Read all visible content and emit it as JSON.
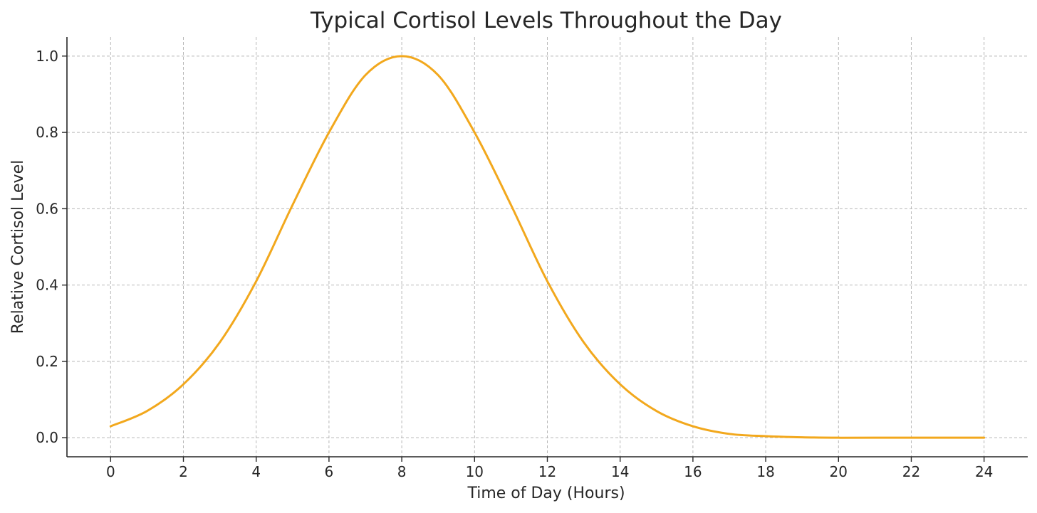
{
  "chart_data": {
    "type": "line",
    "title": "Typical Cortisol Levels Throughout the Day",
    "xlabel": "Time of Day (Hours)",
    "ylabel": "Relative Cortisol Level",
    "xlim": [
      -1.2,
      25.2
    ],
    "ylim": [
      -0.05,
      1.05
    ],
    "xticks": [
      0,
      2,
      4,
      6,
      8,
      10,
      12,
      14,
      16,
      18,
      20,
      22,
      24
    ],
    "xtick_labels": [
      "0",
      "2",
      "4",
      "6",
      "8",
      "10",
      "12",
      "14",
      "16",
      "18",
      "20",
      "22",
      "24"
    ],
    "yticks": [
      0.0,
      0.2,
      0.4,
      0.6,
      0.8,
      1.0
    ],
    "ytick_labels": [
      "0.0",
      "0.2",
      "0.4",
      "0.6",
      "0.8",
      "1.0"
    ],
    "grid": true,
    "legend": "none",
    "series": [
      {
        "color": "#F2A81D",
        "x": [
          0,
          1,
          2,
          3,
          4,
          5,
          6,
          7,
          8,
          9,
          10,
          11,
          12,
          13,
          14,
          15,
          16,
          17,
          18,
          19,
          20,
          21,
          22,
          23,
          24
        ],
        "y": [
          0.03,
          0.07,
          0.14,
          0.25,
          0.41,
          0.61,
          0.8,
          0.95,
          1.0,
          0.95,
          0.8,
          0.61,
          0.41,
          0.25,
          0.14,
          0.07,
          0.03,
          0.01,
          0.004,
          0.001,
          0.0,
          0.0,
          0.0,
          0.0,
          0.0
        ]
      }
    ]
  }
}
